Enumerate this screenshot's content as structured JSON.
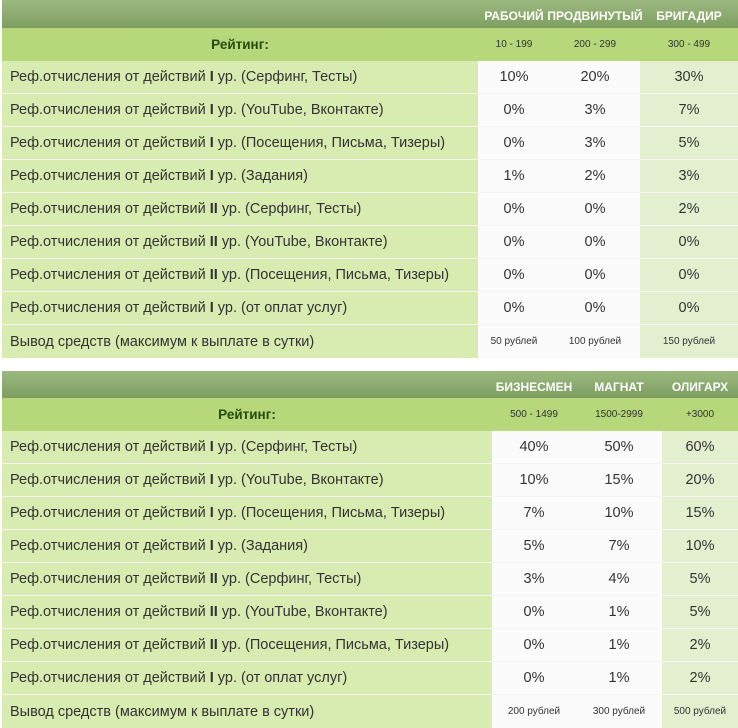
{
  "tables": [
    {
      "tiers": [
        "РАБОЧИЙ",
        "ПРОДВИНУТЫЙ",
        "БРИГАДИР"
      ],
      "rating_label": "Рейтинг:",
      "ranges": [
        "10 - 199",
        "200 - 299",
        "300 - 499"
      ],
      "rows": [
        {
          "pre": "Реф.отчисления от действий ",
          "lvl": "I",
          "post": " ур. (Серфинг, Тесты)",
          "values": [
            "10%",
            "20%",
            "30%"
          ]
        },
        {
          "pre": "Реф.отчисления от действий ",
          "lvl": "I",
          "post": " ур. (YouTube, Вконтакте)",
          "values": [
            "0%",
            "3%",
            "7%"
          ]
        },
        {
          "pre": "Реф.отчисления от действий ",
          "lvl": "I",
          "post": " ур. (Посещения, Письма, Тизеры)",
          "values": [
            "0%",
            "3%",
            "5%"
          ]
        },
        {
          "pre": "Реф.отчисления от действий ",
          "lvl": "I",
          "post": " ур. (Задания)",
          "values": [
            "1%",
            "2%",
            "3%"
          ]
        },
        {
          "pre": "Реф.отчисления от действий ",
          "lvl": "II",
          "post": " ур. (Серфинг, Тесты)",
          "values": [
            "0%",
            "0%",
            "2%"
          ]
        },
        {
          "pre": "Реф.отчисления от действий ",
          "lvl": "II",
          "post": " ур. (YouTube, Вконтакте)",
          "values": [
            "0%",
            "0%",
            "0%"
          ]
        },
        {
          "pre": "Реф.отчисления от действий ",
          "lvl": "II",
          "post": " ур. (Посещения, Письма, Тизеры)",
          "values": [
            "0%",
            "0%",
            "0%"
          ]
        },
        {
          "pre": "Реф.отчисления от действий ",
          "lvl": "I",
          "post": " ур. (от оплат услуг)",
          "values": [
            "0%",
            "0%",
            "0%"
          ]
        }
      ],
      "withdraw": {
        "label": "Вывод средств (максимум к выплате в сутки)",
        "values": [
          "50 рублей",
          "100 рублей",
          "150 рублей"
        ]
      }
    },
    {
      "tiers": [
        "БИЗНЕСМЕН",
        "МАГНАТ",
        "ОЛИГАРХ"
      ],
      "rating_label": "Рейтинг:",
      "ranges": [
        "500 - 1499",
        "1500-2999",
        "+3000"
      ],
      "rows": [
        {
          "pre": "Реф.отчисления от действий ",
          "lvl": "I",
          "post": " ур. (Серфинг, Тесты)",
          "values": [
            "40%",
            "50%",
            "60%"
          ]
        },
        {
          "pre": "Реф.отчисления от действий ",
          "lvl": "I",
          "post": " ур. (YouTube, Вконтакте)",
          "values": [
            "10%",
            "15%",
            "20%"
          ]
        },
        {
          "pre": "Реф.отчисления от действий ",
          "lvl": "I",
          "post": " ур. (Посещения, Письма, Тизеры)",
          "values": [
            "7%",
            "10%",
            "15%"
          ]
        },
        {
          "pre": "Реф.отчисления от действий ",
          "lvl": "I",
          "post": " ур. (Задания)",
          "values": [
            "5%",
            "7%",
            "10%"
          ]
        },
        {
          "pre": "Реф.отчисления от действий ",
          "lvl": "II",
          "post": " ур. (Серфинг, Тесты)",
          "values": [
            "3%",
            "4%",
            "5%"
          ]
        },
        {
          "pre": "Реф.отчисления от действий ",
          "lvl": "II",
          "post": " ур. (YouTube, Вконтакте)",
          "values": [
            "0%",
            "1%",
            "5%"
          ]
        },
        {
          "pre": "Реф.отчисления от действий ",
          "lvl": "II",
          "post": " ур. (Посещения, Письма, Тизеры)",
          "values": [
            "0%",
            "1%",
            "2%"
          ]
        },
        {
          "pre": "Реф.отчисления от действий ",
          "lvl": "I",
          "post": " ур. (от оплат услуг)",
          "values": [
            "0%",
            "1%",
            "2%"
          ]
        }
      ],
      "withdraw": {
        "label": "Вывод средств (максимум к выплате в сутки)",
        "values": [
          "200 рублей",
          "300 рублей",
          "500 рублей"
        ]
      }
    }
  ],
  "colors": {
    "header": "#8dac70",
    "rating": "#b6d77a",
    "name_cell": "#d8ebb0",
    "value_cell": "#fbfbfb",
    "value_alt": "#e3efcf"
  }
}
